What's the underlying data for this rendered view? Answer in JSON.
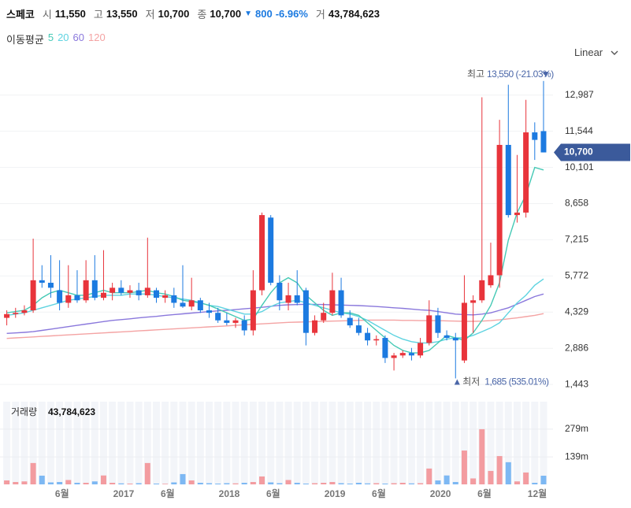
{
  "header": {
    "name": "스페코",
    "open_label": "시",
    "open": "11,550",
    "high_label": "고",
    "high": "13,550",
    "low_label": "저",
    "low": "10,700",
    "close_label": "종",
    "close": "10,700",
    "change": "800",
    "change_pct": "-6.96%",
    "volume_label": "거",
    "volume": "43,784,623"
  },
  "scale_selector": "Linear",
  "chart_data": {
    "type": "candlestick",
    "ma_title": "이동평균",
    "up_color": "#e8343b",
    "down_color": "#1c7ae0",
    "categories": [
      null,
      null,
      null,
      null,
      null,
      null,
      null,
      "6월",
      null,
      null,
      null,
      null,
      null,
      null,
      "2017",
      null,
      null,
      null,
      null,
      "6월",
      null,
      null,
      null,
      null,
      null,
      null,
      "2018",
      null,
      null,
      null,
      null,
      "6월",
      null,
      null,
      null,
      null,
      null,
      null,
      "2019",
      null,
      null,
      null,
      null,
      "6월",
      null,
      null,
      null,
      null,
      null,
      null,
      "2020",
      null,
      null,
      null,
      null,
      "6월",
      null,
      null,
      null,
      null,
      null,
      "12월"
    ],
    "open": [
      4100,
      4250,
      4300,
      4400,
      5600,
      5500,
      5200,
      4700,
      5000,
      4800,
      5600,
      4900,
      5100,
      5300,
      5100,
      5200,
      5000,
      5200,
      4900,
      5000,
      4700,
      4550,
      4800,
      4400,
      4300,
      4000,
      3900,
      4000,
      3600,
      5200,
      8100,
      5500,
      4700,
      5000,
      5200,
      3500,
      4000,
      4300,
      5200,
      4100,
      3800,
      3500,
      3200,
      3300,
      2500,
      2600,
      2700,
      2600,
      3100,
      4200,
      3400,
      3300,
      2400,
      4700,
      4800,
      5400,
      5800,
      11000,
      8200,
      8300,
      11500,
      11550
    ],
    "high": [
      4400,
      4500,
      4600,
      7260,
      6200,
      6600,
      6400,
      6200,
      6000,
      6400,
      6600,
      6800,
      5500,
      5600,
      5400,
      5500,
      7300,
      5300,
      5200,
      5300,
      6200,
      5700,
      4900,
      4700,
      4500,
      4300,
      4100,
      4200,
      6000,
      8300,
      8200,
      5800,
      5500,
      6000,
      5300,
      4200,
      4700,
      5900,
      5700,
      4400,
      4100,
      3700,
      3400,
      3400,
      2700,
      2800,
      2900,
      3300,
      4800,
      4500,
      3600,
      3500,
      5800,
      5000,
      12900,
      7100,
      12000,
      13400,
      10600,
      12800,
      11900,
      13550
    ],
    "low": [
      3800,
      4100,
      4200,
      4300,
      5300,
      4900,
      4400,
      4500,
      4700,
      4700,
      4800,
      4800,
      4800,
      5000,
      4900,
      4800,
      4900,
      4700,
      4700,
      4500,
      4500,
      4400,
      4300,
      4100,
      3900,
      3800,
      3700,
      3400,
      3400,
      5000,
      5400,
      4400,
      4400,
      4600,
      3000,
      3400,
      3900,
      4200,
      4100,
      3700,
      3400,
      3000,
      3000,
      2300,
      2000,
      2500,
      2400,
      2500,
      3000,
      3300,
      3200,
      1685,
      2300,
      3500,
      4700,
      5300,
      5300,
      8100,
      7900,
      8100,
      10400,
      10700
    ],
    "close": [
      4250,
      4300,
      4400,
      5600,
      5500,
      5300,
      4700,
      5000,
      4800,
      5600,
      4900,
      5100,
      5300,
      5100,
      5200,
      5000,
      5300,
      4900,
      5000,
      4700,
      4550,
      4800,
      4400,
      4300,
      4000,
      3900,
      4000,
      3600,
      5200,
      8200,
      5500,
      4800,
      5000,
      4700,
      3500,
      4000,
      4300,
      5200,
      4200,
      3800,
      3500,
      3200,
      3250,
      2500,
      2600,
      2700,
      2600,
      3100,
      4200,
      3500,
      3300,
      3200,
      4700,
      4800,
      5600,
      5800,
      11000,
      8200,
      8300,
      11500,
      11200,
      10700
    ],
    "ma": [
      {
        "name": "5",
        "color": "#45c9b5",
        "values": [
          4300,
          4350,
          4400,
          4600,
          4900,
          5100,
          5200,
          5100,
          5000,
          5000,
          5100,
          5200,
          5100,
          5100,
          5100,
          5150,
          5200,
          5100,
          5050,
          4950,
          4800,
          4750,
          4700,
          4600,
          4450,
          4300,
          4150,
          4000,
          4050,
          4600,
          5100,
          5500,
          5700,
          5500,
          5000,
          4700,
          4400,
          4200,
          4300,
          4300,
          4200,
          3900,
          3600,
          3300,
          3000,
          2800,
          2700,
          2700,
          2800,
          3100,
          3400,
          3300,
          3200,
          3500,
          4000,
          4600,
          5500,
          7200,
          8300,
          9000,
          10100,
          10000
        ]
      },
      {
        "name": "20",
        "color": "#5ed3e0",
        "values": [
          4200,
          4250,
          4300,
          4400,
          4500,
          4600,
          4700,
          4800,
          4850,
          4900,
          4950,
          5000,
          5000,
          5000,
          5050,
          5050,
          5050,
          5000,
          4950,
          4900,
          4850,
          4800,
          4700,
          4600,
          4550,
          4450,
          4350,
          4250,
          4250,
          4350,
          4550,
          4700,
          4750,
          4800,
          4700,
          4600,
          4500,
          4400,
          4300,
          4250,
          4150,
          4000,
          3800,
          3600,
          3400,
          3250,
          3150,
          3100,
          3100,
          3150,
          3250,
          3300,
          3300,
          3400,
          3550,
          3700,
          3900,
          4300,
          4700,
          5000,
          5400,
          5650
        ]
      },
      {
        "name": "60",
        "color": "#8a78dc",
        "values": [
          3480,
          3500,
          3520,
          3550,
          3600,
          3650,
          3700,
          3750,
          3800,
          3850,
          3900,
          3950,
          4000,
          4030,
          4060,
          4100,
          4130,
          4160,
          4200,
          4230,
          4260,
          4290,
          4320,
          4350,
          4380,
          4400,
          4430,
          4460,
          4490,
          4520,
          4560,
          4600,
          4620,
          4630,
          4640,
          4640,
          4630,
          4620,
          4610,
          4600,
          4590,
          4570,
          4550,
          4530,
          4500,
          4480,
          4450,
          4420,
          4400,
          4350,
          4300,
          4250,
          4230,
          4220,
          4250,
          4300,
          4400,
          4500,
          4650,
          4800,
          4950,
          5050
        ]
      },
      {
        "name": "120",
        "color": "#f4a3a3",
        "values": [
          3280,
          3300,
          3320,
          3340,
          3360,
          3380,
          3400,
          3420,
          3440,
          3460,
          3480,
          3500,
          3520,
          3540,
          3560,
          3580,
          3600,
          3620,
          3640,
          3660,
          3680,
          3700,
          3720,
          3740,
          3760,
          3780,
          3800,
          3820,
          3840,
          3860,
          3880,
          3900,
          3920,
          3930,
          3940,
          3950,
          3960,
          3970,
          3980,
          3990,
          4000,
          4010,
          4010,
          4010,
          4010,
          4000,
          4000,
          3990,
          3990,
          3990,
          3980,
          3970,
          3960,
          3960,
          3970,
          3990,
          4020,
          4060,
          4100,
          4150,
          4200,
          4270
        ]
      }
    ],
    "ylim": [
      1070,
      14110
    ],
    "yticks": [
      {
        "value": 12987,
        "label": "12,987"
      },
      {
        "value": 11544,
        "label": "11,544"
      },
      {
        "value": 10101,
        "label": "10,101"
      },
      {
        "value": 8658,
        "label": "8,658"
      },
      {
        "value": 7215,
        "label": "7,215"
      },
      {
        "value": 5772,
        "label": "5,772"
      },
      {
        "value": 4329,
        "label": "4,329"
      },
      {
        "value": 2886,
        "label": "2,886"
      },
      {
        "value": 1443,
        "label": "1,443"
      }
    ],
    "grid": true,
    "high_label": "최고",
    "high_annotation": "13,550 (-21.03%)",
    "low_label": "최저",
    "low_annotation": "1,685 (535.01%)",
    "volume_title": "거래량",
    "volume_title_value": "43,784,623",
    "volume": [
      20,
      12,
      15,
      108,
      44,
      10,
      12,
      22,
      8,
      8,
      15,
      45,
      8,
      5,
      4,
      6,
      108,
      4,
      3,
      10,
      52,
      20,
      8,
      6,
      4,
      6,
      5,
      8,
      12,
      40,
      10,
      6,
      22,
      8,
      4,
      6,
      8,
      12,
      6,
      4,
      8,
      5,
      6,
      4,
      6,
      8,
      5,
      6,
      80,
      20,
      45,
      12,
      171,
      30,
      279,
      68,
      143,
      112,
      15,
      60,
      8,
      43.784623
    ],
    "volume_colors": {
      "up": "#f39ca0",
      "down": "#7db8f3"
    },
    "vlim": [
      0,
      418
    ],
    "vticks": [
      {
        "value": 279,
        "label": "279m"
      },
      {
        "value": 139,
        "label": "139m"
      }
    ]
  }
}
